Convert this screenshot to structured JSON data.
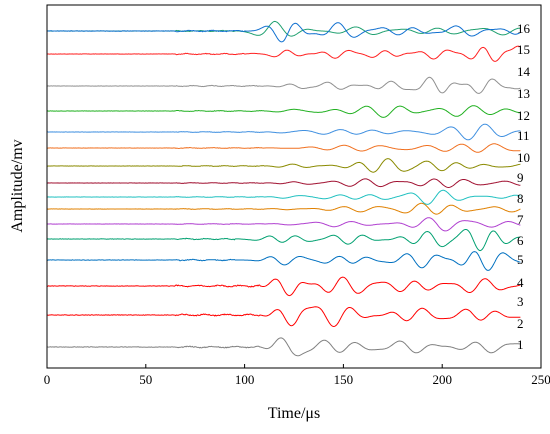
{
  "chart_data": {
    "type": "line",
    "title": "",
    "xlabel": "Time/μs",
    "ylabel": "Amplitude/mv",
    "xlim": [
      0,
      250
    ],
    "x_ticks": [
      "0",
      "50",
      "100",
      "150",
      "200",
      "250"
    ],
    "grid": false,
    "legend": "none",
    "signal_onset_us": 65,
    "signal_end_us": 240,
    "series": [
      {
        "name": "1",
        "color": "#808080",
        "first_arrival_us": 108,
        "peak_us": 118
      },
      {
        "name": "2",
        "color": "#ff0000",
        "first_arrival_us": 108,
        "peak_us": 122
      },
      {
        "name": "3",
        "color": "#ff0000",
        "first_arrival_us": 108,
        "peak_us": 122
      },
      {
        "name": "4",
        "color": "#0070c0",
        "first_arrival_us": 95,
        "peak_us": 212
      },
      {
        "name": "5",
        "color": "#00a070",
        "first_arrival_us": 95,
        "peak_us": 215
      },
      {
        "name": "6",
        "color": "#b040d0",
        "first_arrival_us": 110,
        "peak_us": 200
      },
      {
        "name": "7",
        "color": "#e08000",
        "first_arrival_us": 110,
        "peak_us": 195
      },
      {
        "name": "8",
        "color": "#20c0c0",
        "first_arrival_us": 110,
        "peak_us": 190
      },
      {
        "name": "9",
        "color": "#a01030",
        "first_arrival_us": 110,
        "peak_us": 185
      },
      {
        "name": "10",
        "color": "#8a8a00",
        "first_arrival_us": 110,
        "peak_us": 180
      },
      {
        "name": "11",
        "color": "#f07020",
        "first_arrival_us": 110,
        "peak_us": 230
      },
      {
        "name": "12",
        "color": "#4090e0",
        "first_arrival_us": 110,
        "peak_us": 225
      },
      {
        "name": "13",
        "color": "#20b020",
        "first_arrival_us": 110,
        "peak_us": 190
      },
      {
        "name": "14",
        "color": "#909090",
        "first_arrival_us": 110,
        "peak_us": 205
      },
      {
        "name": "15",
        "color": "#ff2020",
        "first_arrival_us": 100,
        "peak_us": 235
      },
      {
        "name": "16",
        "color": "#1070d0",
        "first_arrival_us": 100,
        "peak_us": 125
      }
    ],
    "extra_trace": {
      "color": "#20a070",
      "first_arrival_us": 95,
      "peak_us": 105
    }
  }
}
